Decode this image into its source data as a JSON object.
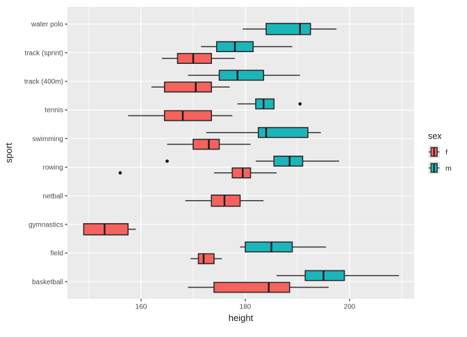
{
  "chart_data": {
    "type": "boxplot",
    "orientation": "horizontal",
    "title": "",
    "xlabel": "height",
    "ylabel": "sport",
    "xlim": [
      145.9,
      212.4
    ],
    "x_major_ticks": [
      160,
      180,
      200
    ],
    "x_minor_gridlines": [
      150,
      170,
      190,
      210
    ],
    "grid": "on",
    "categories_top_to_bottom": [
      "water polo",
      "track (sprint)",
      "track (400m)",
      "tennis",
      "swimming",
      "rowing",
      "netball",
      "gymnastics",
      "field",
      "basketball"
    ],
    "legend": {
      "title": "sex",
      "position": "right",
      "entries": [
        {
          "label": "f",
          "color": "#F4635C"
        },
        {
          "label": "m",
          "color": "#1CB5BA"
        }
      ]
    },
    "colors": {
      "panel_background": "#EBEBEB",
      "gridline": "#FFFFFF",
      "box_stroke": "#2b2b2b",
      "median_stroke": "#1a1a1a",
      "tick_text": "#4d4d4d",
      "legend_key_background": "#EAEAEA"
    },
    "series": [
      {
        "name": "f",
        "color": "#F4635C",
        "boxes": [
          null,
          {
            "lo": 164,
            "q1": 167,
            "med": 170,
            "q3": 173.5,
            "hi": 178,
            "outliers": []
          },
          {
            "lo": 162,
            "q1": 164.5,
            "med": 170.5,
            "q3": 173.5,
            "hi": 177,
            "outliers": []
          },
          {
            "lo": 157.5,
            "q1": 164.5,
            "med": 168,
            "q3": 173.5,
            "hi": 177.5,
            "outliers": []
          },
          {
            "lo": 165,
            "q1": 170,
            "med": 173,
            "q3": 175,
            "hi": 181,
            "outliers": []
          },
          {
            "lo": 174,
            "q1": 177.5,
            "med": 179.5,
            "q3": 181,
            "hi": 186,
            "outliers": [
              156
            ]
          },
          {
            "lo": 168.5,
            "q1": 173.5,
            "med": 176,
            "q3": 179,
            "hi": 183.5,
            "outliers": []
          },
          {
            "lo": 149,
            "q1": 149,
            "med": 153,
            "q3": 157.5,
            "hi": 159,
            "outliers": []
          },
          {
            "lo": 169.5,
            "q1": 171,
            "med": 172,
            "q3": 174,
            "hi": 175.5,
            "outliers": []
          },
          {
            "lo": 169,
            "q1": 174,
            "med": 184.5,
            "q3": 188.5,
            "hi": 196,
            "outliers": []
          }
        ]
      },
      {
        "name": "m",
        "color": "#1CB5BA",
        "boxes": [
          {
            "lo": 179.5,
            "q1": 184,
            "med": 190.5,
            "q3": 192.5,
            "hi": 197.5,
            "outliers": []
          },
          {
            "lo": 171.5,
            "q1": 174.5,
            "med": 178,
            "q3": 181.5,
            "hi": 189,
            "outliers": []
          },
          {
            "lo": 169,
            "q1": 175,
            "med": 178.5,
            "q3": 183.5,
            "hi": 190.5,
            "outliers": []
          },
          {
            "lo": 178.5,
            "q1": 182,
            "med": 183.5,
            "q3": 185.5,
            "hi": 185.5,
            "outliers": [
              190.5
            ]
          },
          {
            "lo": 172.5,
            "q1": 182.5,
            "med": 184,
            "q3": 192,
            "hi": 194.5,
            "outliers": []
          },
          {
            "lo": 182,
            "q1": 185.5,
            "med": 188.5,
            "q3": 191,
            "hi": 198,
            "outliers": [
              165
            ]
          },
          null,
          null,
          {
            "lo": 179,
            "q1": 180,
            "med": 185,
            "q3": 189,
            "hi": 195.5,
            "outliers": []
          },
          {
            "lo": 186,
            "q1": 191.5,
            "med": 195,
            "q3": 199,
            "hi": 209.5,
            "outliers": []
          }
        ]
      }
    ]
  }
}
